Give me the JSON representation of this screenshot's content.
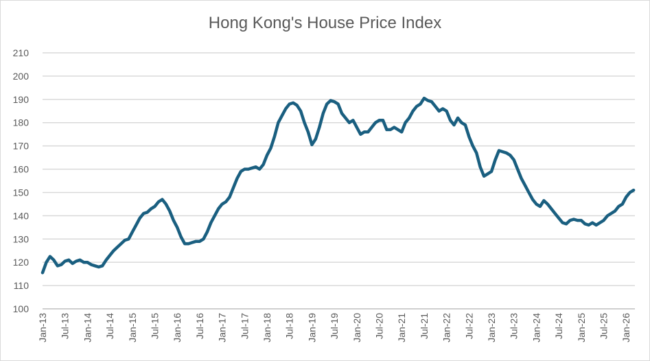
{
  "chart_data": {
    "type": "line",
    "title": "Hong Kong's House Price Index",
    "xlabel": "",
    "ylabel": "",
    "ylim": [
      100,
      210
    ],
    "yticks": [
      100,
      110,
      120,
      130,
      140,
      150,
      160,
      170,
      180,
      190,
      200,
      210
    ],
    "grid": true,
    "legend": "none",
    "line_color": "#1a5f80",
    "x_tick_labels": [
      "Jan-13",
      "Jul-13",
      "Jan-14",
      "Jul-14",
      "Jan-15",
      "Jul-15",
      "Jan-16",
      "Jul-16",
      "Jan-17",
      "Jul-17",
      "Jan-18",
      "Jul-18",
      "Jan-19",
      "Jul-19",
      "Jan-20",
      "Jul-20",
      "Jan-21",
      "Jul-21",
      "Jan-22",
      "Jul-22",
      "Jan-23",
      "Jul-23",
      "Jan-24",
      "Jul-24",
      "Jan-25",
      "Jul-25",
      "Jan-26"
    ],
    "x_start": "Jan-13",
    "x_frequency": "monthly",
    "series": [
      {
        "values": [
          115.5,
          120,
          122.5,
          121,
          118.5,
          119,
          120.5,
          121,
          119.5,
          120.5,
          121,
          120,
          120,
          119,
          118.5,
          118,
          118.5,
          121,
          123,
          125,
          126.5,
          128,
          129.5,
          130,
          133,
          136,
          139,
          141,
          141.5,
          143,
          144,
          146,
          147,
          145,
          142,
          138,
          135,
          131,
          128,
          128,
          128.5,
          129,
          129,
          130,
          133,
          137,
          140,
          143,
          145,
          146,
          148,
          152,
          156,
          159,
          160,
          160,
          160.5,
          161,
          160,
          162,
          166,
          169,
          174,
          180,
          183,
          186,
          188,
          188.5,
          187.5,
          185,
          180,
          176,
          170.5,
          173,
          178,
          184,
          188,
          189.5,
          189,
          188,
          184,
          182,
          180,
          181,
          178,
          175,
          176,
          176,
          178,
          180,
          181,
          181,
          177,
          177,
          178,
          177,
          176,
          180,
          182,
          185,
          187,
          188,
          190.5,
          189.5,
          189,
          187,
          185,
          186,
          185,
          181,
          179,
          182,
          180,
          179,
          174,
          170,
          167,
          161,
          157,
          158,
          159,
          164,
          168,
          167.5,
          167,
          166,
          164,
          160,
          156,
          153,
          150,
          147,
          145,
          144,
          146.5,
          145,
          143,
          141,
          139,
          137,
          136.5,
          138,
          138.5,
          138,
          138,
          136.5,
          136,
          137,
          136,
          137,
          138,
          140,
          141,
          142,
          144,
          145,
          148,
          150,
          151
        ]
      }
    ]
  }
}
